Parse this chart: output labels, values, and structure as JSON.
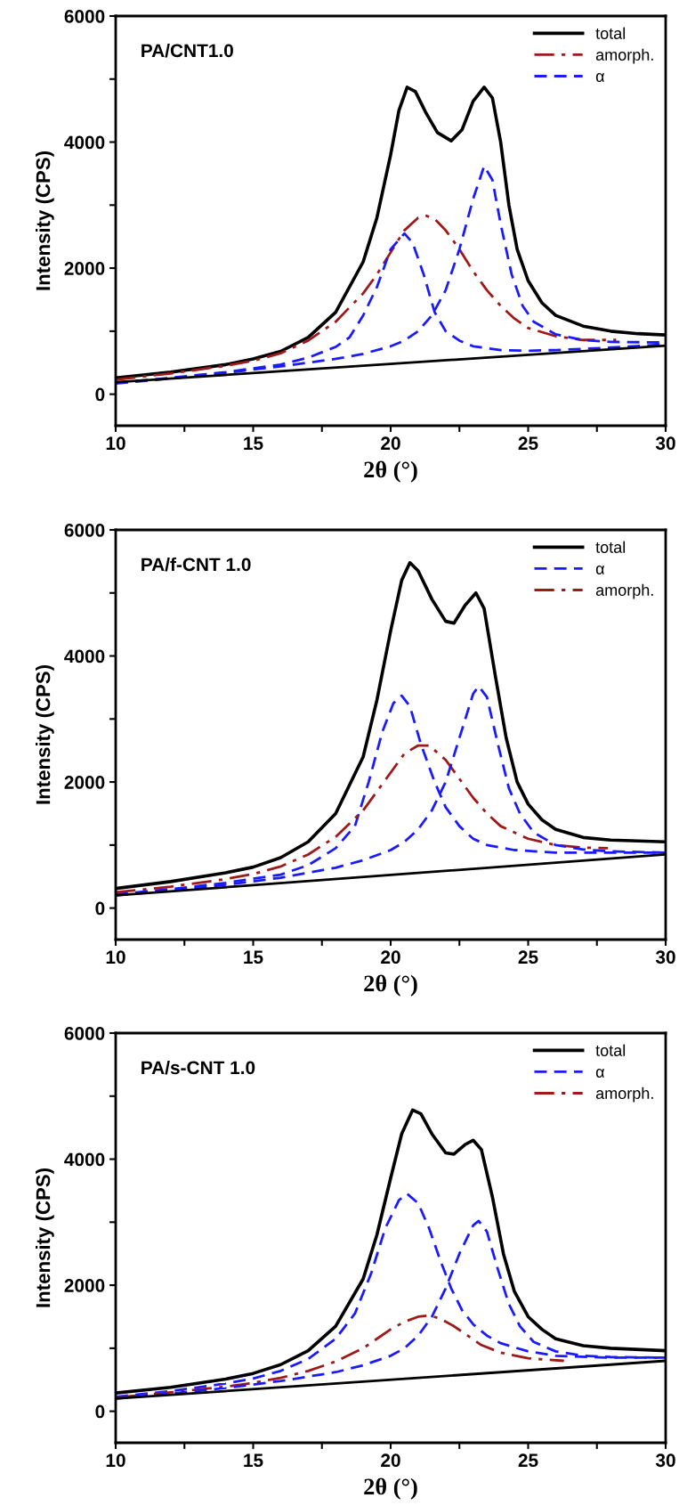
{
  "chart_data": [
    {
      "type": "line",
      "title": "PA/CNT1.0",
      "xlabel": "2θ (°)",
      "ylabel": "Intensity (CPS)",
      "xlim": [
        10,
        30
      ],
      "ylim": [
        -500,
        6000
      ],
      "xticks": [
        10,
        {
          "value": 12.5,
          "label": null
        },
        15,
        {
          "value": 17.5,
          "label": null
        },
        20,
        {
          "value": 22.5,
          "label": null
        },
        25,
        {
          "value": 27.5,
          "label": null
        },
        30
      ],
      "yticks": [
        0,
        {
          "value": 1000,
          "label": null
        },
        2000,
        {
          "value": 3000,
          "label": null
        },
        4000,
        {
          "value": 5000,
          "label": null
        },
        6000
      ],
      "legend": "top right",
      "grid": false,
      "series": [
        {
          "name": "total",
          "color": "#000000",
          "line_style": "solid",
          "x": [
            10,
            12,
            14,
            15,
            16,
            17,
            18,
            19,
            19.5,
            20,
            20.3,
            20.6,
            20.9,
            21.3,
            21.7,
            22.2,
            22.6,
            23,
            23.4,
            23.7,
            24,
            24.3,
            24.6,
            25,
            25.5,
            26,
            27,
            28,
            29,
            30
          ],
          "values": [
            260,
            350,
            470,
            560,
            680,
            900,
            1300,
            2100,
            2800,
            3800,
            4500,
            4870,
            4800,
            4450,
            4150,
            4020,
            4200,
            4650,
            4870,
            4700,
            4000,
            3000,
            2300,
            1800,
            1450,
            1250,
            1080,
            1000,
            960,
            940
          ]
        },
        {
          "name": "amorph.",
          "color": "#a01818",
          "line_style": "dashdot",
          "x": [
            10,
            12,
            14,
            15,
            16,
            17,
            18,
            19,
            19.5,
            20,
            20.5,
            21,
            21.3,
            21.6,
            22,
            22.5,
            23,
            23.5,
            24,
            24.5,
            25,
            26,
            27,
            28.2
          ],
          "values": [
            230,
            330,
            450,
            530,
            650,
            850,
            1150,
            1600,
            1900,
            2250,
            2600,
            2800,
            2830,
            2780,
            2600,
            2300,
            1950,
            1650,
            1400,
            1200,
            1050,
            920,
            860,
            860
          ]
        },
        {
          "name": "α",
          "color": "#1a1aff",
          "line_style": "dashed",
          "x": [
            10,
            12,
            14,
            16,
            17,
            18,
            18.5,
            19,
            19.5,
            20,
            20.5,
            20.8,
            21.2,
            21.6,
            22,
            22.5,
            23,
            24,
            25,
            26,
            28,
            30
          ],
          "values": [
            180,
            260,
            350,
            470,
            580,
            750,
            900,
            1250,
            1700,
            2300,
            2550,
            2400,
            1900,
            1300,
            1000,
            850,
            760,
            700,
            690,
            700,
            740,
            790
          ]
        },
        {
          "color": "#1a1aff",
          "line_style": "dashed",
          "x": [
            10,
            12,
            14,
            16,
            18,
            19,
            20,
            20.5,
            21,
            21.5,
            22,
            22.5,
            23,
            23.4,
            23.7,
            24,
            24.4,
            24.8,
            25.2,
            26,
            27,
            28,
            30
          ],
          "values": [
            170,
            250,
            340,
            440,
            560,
            640,
            760,
            850,
            1000,
            1250,
            1650,
            2300,
            3100,
            3620,
            3400,
            2700,
            1900,
            1400,
            1150,
            950,
            860,
            830,
            820
          ]
        },
        {
          "color": "#000000",
          "line_style": "solid",
          "x": [
            10,
            30
          ],
          "values": [
            190,
            770
          ]
        }
      ]
    },
    {
      "type": "line",
      "title": "PA/f-CNT 1.0",
      "xlabel": "2θ (°)",
      "ylabel": "Intensity (CPS)",
      "xlim": [
        10,
        30
      ],
      "ylim": [
        -500,
        6000
      ],
      "xticks": [
        10,
        {
          "value": 12.5,
          "label": null
        },
        15,
        {
          "value": 17.5,
          "label": null
        },
        20,
        {
          "value": 22.5,
          "label": null
        },
        25,
        {
          "value": 27.5,
          "label": null
        },
        30
      ],
      "yticks": [
        0,
        {
          "value": 1000,
          "label": null
        },
        2000,
        {
          "value": 3000,
          "label": null
        },
        4000,
        {
          "value": 5000,
          "label": null
        },
        6000
      ],
      "legend": "top right",
      "grid": false,
      "series": [
        {
          "name": "total",
          "color": "#000000",
          "line_style": "solid",
          "x": [
            10,
            12,
            14,
            15,
            16,
            17,
            18,
            19,
            19.5,
            20,
            20.4,
            20.7,
            21,
            21.5,
            22,
            22.3,
            22.7,
            23.1,
            23.4,
            23.8,
            24.2,
            24.6,
            25,
            25.5,
            26,
            27,
            28,
            30
          ],
          "values": [
            310,
            420,
            560,
            650,
            800,
            1050,
            1500,
            2400,
            3300,
            4400,
            5200,
            5480,
            5350,
            4900,
            4550,
            4520,
            4800,
            5000,
            4750,
            3700,
            2700,
            2000,
            1650,
            1400,
            1250,
            1120,
            1080,
            1050
          ]
        },
        {
          "name": "α",
          "color": "#1a1aff",
          "line_style": "dashed",
          "x": [
            10,
            12,
            14,
            16,
            17,
            18,
            18.7,
            19.2,
            19.7,
            20.1,
            20.4,
            20.7,
            21.1,
            21.6,
            22,
            22.5,
            23,
            23.5,
            24.5,
            26,
            28,
            30
          ],
          "values": [
            220,
            300,
            400,
            530,
            680,
            950,
            1300,
            2000,
            2800,
            3250,
            3370,
            3200,
            2600,
            2000,
            1600,
            1300,
            1100,
            1000,
            920,
            880,
            880,
            880
          ]
        },
        {
          "name": "amorph.",
          "color": "#a01818",
          "line_style": "dashdot",
          "x": [
            10,
            12,
            14,
            15,
            16,
            17,
            18,
            19,
            19.5,
            20,
            20.5,
            21,
            21.4,
            22,
            22.5,
            23,
            23.5,
            24,
            25,
            26,
            27,
            27.9
          ],
          "values": [
            250,
            340,
            460,
            540,
            660,
            850,
            1130,
            1550,
            1850,
            2150,
            2450,
            2580,
            2580,
            2350,
            2050,
            1750,
            1500,
            1300,
            1100,
            1000,
            960,
            950
          ]
        },
        {
          "color": "#1a1aff",
          "line_style": "dashed",
          "x": [
            10,
            12,
            14,
            16,
            18,
            19,
            20,
            20.5,
            21,
            21.5,
            22,
            22.5,
            23,
            23.2,
            23.5,
            23.9,
            24.3,
            24.7,
            25.2,
            26,
            27,
            28,
            30
          ],
          "values": [
            200,
            280,
            370,
            480,
            640,
            760,
            920,
            1050,
            1250,
            1550,
            2000,
            2700,
            3400,
            3520,
            3350,
            2600,
            1900,
            1500,
            1200,
            1000,
            930,
            900,
            880
          ]
        },
        {
          "color": "#000000",
          "line_style": "solid",
          "x": [
            10,
            30
          ],
          "values": [
            200,
            850
          ]
        }
      ]
    },
    {
      "type": "line",
      "title": "PA/s-CNT 1.0",
      "xlabel": "2θ (°)",
      "ylabel": "Intensity (CPS)",
      "xlim": [
        10,
        30
      ],
      "ylim": [
        -500,
        6000
      ],
      "xticks": [
        10,
        {
          "value": 12.5,
          "label": null
        },
        15,
        {
          "value": 17.5,
          "label": null
        },
        20,
        {
          "value": 22.5,
          "label": null
        },
        25,
        {
          "value": 27.5,
          "label": null
        },
        30
      ],
      "yticks": [
        0,
        {
          "value": 1000,
          "label": null
        },
        2000,
        {
          "value": 3000,
          "label": null
        },
        4000,
        {
          "value": 5000,
          "label": null
        },
        6000
      ],
      "legend": "top right",
      "grid": false,
      "series": [
        {
          "name": "total",
          "color": "#000000",
          "line_style": "solid",
          "x": [
            10,
            12,
            14,
            15,
            16,
            17,
            18,
            19,
            19.5,
            20,
            20.4,
            20.8,
            21.1,
            21.5,
            22,
            22.3,
            22.7,
            23,
            23.3,
            23.7,
            24.1,
            24.5,
            25,
            25.5,
            26,
            27,
            28,
            30
          ],
          "values": [
            290,
            380,
            510,
            600,
            740,
            960,
            1350,
            2100,
            2800,
            3700,
            4400,
            4780,
            4720,
            4400,
            4100,
            4080,
            4230,
            4300,
            4150,
            3400,
            2500,
            1900,
            1500,
            1300,
            1150,
            1040,
            1000,
            960
          ]
        },
        {
          "name": "α",
          "color": "#1a1aff",
          "line_style": "dashed",
          "x": [
            10,
            12,
            14,
            15,
            16,
            17,
            18,
            18.7,
            19.3,
            19.8,
            20.3,
            20.6,
            21,
            21.4,
            21.8,
            22.2,
            22.6,
            23,
            23.5,
            24,
            25,
            26,
            28,
            30
          ],
          "values": [
            230,
            320,
            440,
            520,
            640,
            830,
            1150,
            1550,
            2200,
            2900,
            3350,
            3450,
            3300,
            2900,
            2400,
            1950,
            1600,
            1380,
            1200,
            1080,
            950,
            880,
            850,
            850
          ]
        },
        {
          "name": "amorph.",
          "color": "#a01818",
          "line_style": "dashdot",
          "x": [
            10,
            12,
            14,
            15,
            16,
            17,
            18,
            19,
            19.5,
            20,
            20.5,
            21,
            21.4,
            21.8,
            22.3,
            22.8,
            23.3,
            24,
            25,
            26.3
          ],
          "values": [
            220,
            300,
            390,
            450,
            530,
            640,
            790,
            1000,
            1150,
            1300,
            1420,
            1500,
            1520,
            1470,
            1350,
            1200,
            1050,
            930,
            840,
            800
          ]
        },
        {
          "color": "#1a1aff",
          "line_style": "dashed",
          "x": [
            10,
            12,
            14,
            16,
            18,
            19,
            20,
            20.5,
            21,
            21.5,
            22,
            22.5,
            23,
            23.2,
            23.5,
            23.9,
            24.3,
            24.7,
            25.2,
            26,
            27,
            28,
            30
          ],
          "values": [
            200,
            280,
            370,
            480,
            620,
            730,
            880,
            1000,
            1200,
            1500,
            1950,
            2500,
            2950,
            3020,
            2850,
            2250,
            1700,
            1350,
            1100,
            950,
            880,
            860,
            850
          ]
        },
        {
          "color": "#000000",
          "line_style": "solid",
          "x": [
            10,
            30
          ],
          "values": [
            200,
            800
          ]
        }
      ]
    }
  ]
}
